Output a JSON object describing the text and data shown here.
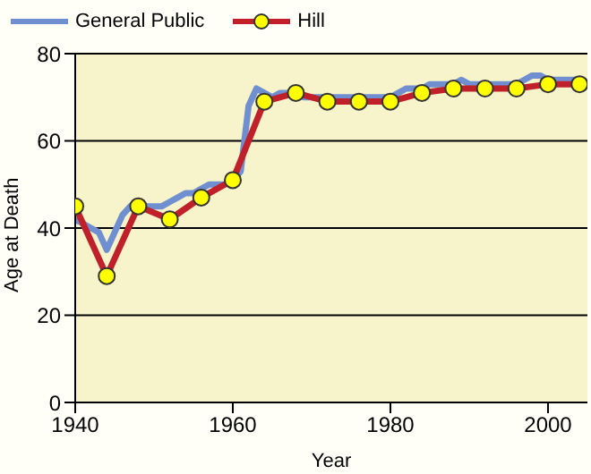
{
  "chart_data": {
    "type": "line",
    "xlabel": "Year",
    "ylabel": "Age at Death",
    "xlim": [
      1940,
      2005
    ],
    "xticks": [
      1940,
      1960,
      1980,
      2000
    ],
    "ylim": [
      0,
      80
    ],
    "yticks": [
      0,
      20,
      40,
      60,
      80
    ],
    "grid": "y",
    "legend": "top left",
    "series": [
      {
        "name": "General Public",
        "color": "#6f8fd0",
        "marker": "none",
        "x": [
          1940,
          1941,
          1942,
          1943,
          1944,
          1945,
          1946,
          1947,
          1948,
          1949,
          1950,
          1951,
          1952,
          1953,
          1954,
          1955,
          1956,
          1957,
          1958,
          1959,
          1960,
          1961,
          1962,
          1963,
          1964,
          1965,
          1966,
          1967,
          1968,
          1969,
          1970,
          1971,
          1972,
          1973,
          1974,
          1975,
          1976,
          1977,
          1978,
          1979,
          1980,
          1981,
          1982,
          1983,
          1984,
          1985,
          1986,
          1987,
          1988,
          1989,
          1990,
          1991,
          1992,
          1993,
          1994,
          1995,
          1996,
          1997,
          1998,
          1999,
          2000,
          2001,
          2002,
          2003,
          2004
        ],
        "values": [
          42,
          41,
          40,
          39,
          35,
          39,
          43,
          45,
          46,
          45,
          45,
          45,
          46,
          47,
          48,
          48,
          49,
          50,
          50,
          50,
          51,
          53,
          68,
          72,
          71,
          70,
          71,
          71,
          71,
          70,
          70,
          70,
          70,
          70,
          70,
          70,
          70,
          70,
          70,
          70,
          70,
          71,
          72,
          72,
          72,
          73,
          73,
          73,
          73,
          74,
          73,
          73,
          73,
          73,
          73,
          73,
          73,
          74,
          75,
          75,
          74,
          74,
          74,
          74,
          74
        ]
      },
      {
        "name": "Hill",
        "color": "#c0202a",
        "marker": "circle",
        "x": [
          1940,
          1944,
          1948,
          1952,
          1956,
          1960,
          1964,
          1968,
          1972,
          1976,
          1980,
          1984,
          1988,
          1992,
          1996,
          2000,
          2004
        ],
        "values": [
          45,
          29,
          45,
          42,
          47,
          51,
          69,
          71,
          69,
          69,
          69,
          71,
          72,
          72,
          72,
          73,
          73
        ]
      }
    ]
  }
}
